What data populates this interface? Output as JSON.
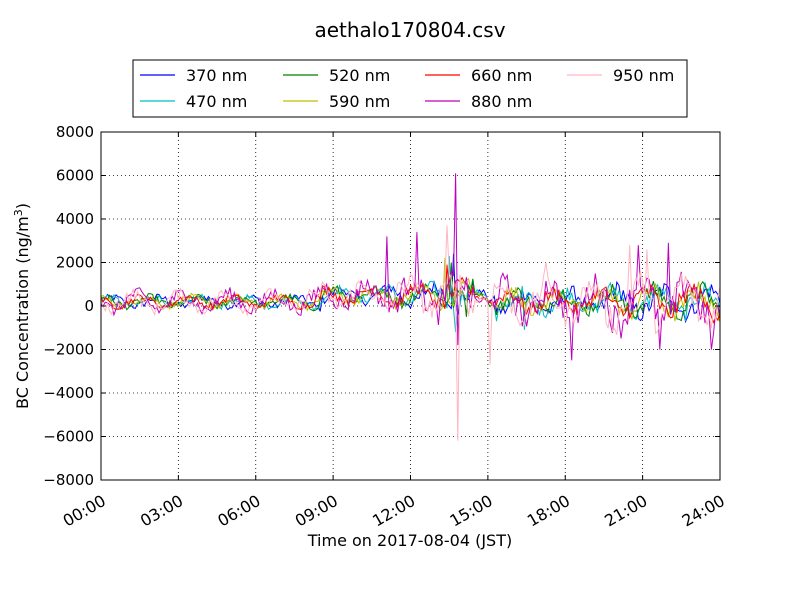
{
  "chart_data": {
    "type": "line",
    "title": "aethalo170804.csv",
    "xlabel": "Time on 2017-08-04 (JST)",
    "ylabel_main": "BC Concentration (ng/m",
    "ylabel_sup": "3",
    "ylabel_close": ")",
    "xlim": [
      "00:00",
      "24:00"
    ],
    "ylim": [
      -8000,
      8000
    ],
    "x_ticks": [
      "00:00",
      "03:00",
      "06:00",
      "09:00",
      "12:00",
      "15:00",
      "18:00",
      "21:00",
      "24:00"
    ],
    "y_ticks": [
      "8000",
      "6000",
      "4000",
      "2000",
      "0",
      "−2000",
      "−4000",
      "−6000",
      "−8000"
    ],
    "grid": true,
    "legend_position": "top-center",
    "sample_interval_minutes": 5,
    "series": [
      {
        "name": "370 nm",
        "color": "#0000ff",
        "key_events": [
          {
            "time": "13:40",
            "value": 2400
          },
          {
            "time": "13:50",
            "value": -400
          },
          {
            "time": "14:00",
            "value": 600
          },
          {
            "time": "15:15",
            "value": 450
          }
        ]
      },
      {
        "name": "470 nm",
        "color": "#00bfbf",
        "key_events": [
          {
            "time": "13:30",
            "value": 2300
          },
          {
            "time": "13:45",
            "value": -1200
          },
          {
            "time": "15:20",
            "value": -700
          },
          {
            "time": "16:25",
            "value": -1100
          }
        ]
      },
      {
        "name": "520 nm",
        "color": "#008000",
        "key_events": [
          {
            "time": "13:35",
            "value": 2000
          },
          {
            "time": "14:10",
            "value": -500
          },
          {
            "time": "16:00",
            "value": 700
          }
        ]
      },
      {
        "name": "590 nm",
        "color": "#bfbf00",
        "key_events": [
          {
            "time": "13:20",
            "value": 2200
          },
          {
            "time": "15:00",
            "value": 300
          }
        ]
      },
      {
        "name": "660 nm",
        "color": "#ff0000",
        "key_events": [
          {
            "time": "13:25",
            "value": 1900
          },
          {
            "time": "15:05",
            "value": 250
          }
        ]
      },
      {
        "name": "880 nm",
        "color": "#bf00bf",
        "key_events": [
          {
            "time": "11:05",
            "value": 3200
          },
          {
            "time": "12:15",
            "value": 3400
          },
          {
            "time": "13:45",
            "value": 6100
          },
          {
            "time": "13:50",
            "value": -1800
          },
          {
            "time": "18:15",
            "value": -2500
          },
          {
            "time": "20:50",
            "value": 2800
          },
          {
            "time": "21:40",
            "value": -2000
          },
          {
            "time": "22:00",
            "value": 2900
          },
          {
            "time": "23:40",
            "value": -2000
          }
        ]
      },
      {
        "name": "950 nm",
        "color": "#ffb6c1",
        "key_events": [
          {
            "time": "13:25",
            "value": 3700
          },
          {
            "time": "13:50",
            "value": -6200
          },
          {
            "time": "15:05",
            "value": -2700
          },
          {
            "time": "17:15",
            "value": 2000
          },
          {
            "time": "20:30",
            "value": 2800
          },
          {
            "time": "21:10",
            "value": 2600
          }
        ]
      }
    ]
  }
}
